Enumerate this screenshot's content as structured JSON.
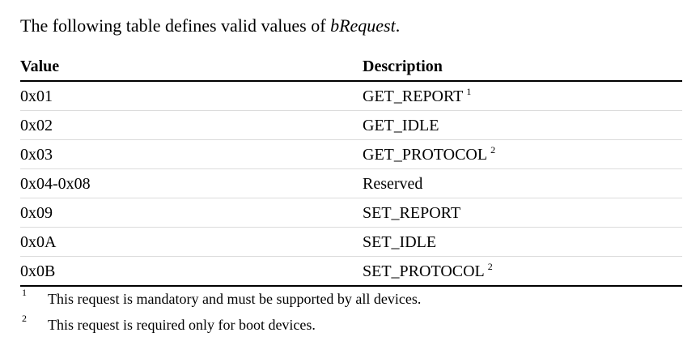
{
  "intro": {
    "text_before": "The following table defines valid values of ",
    "field_name": "bRequest",
    "text_after": "."
  },
  "table": {
    "headers": {
      "value": "Value",
      "description": "Description"
    },
    "rows": [
      {
        "value": "0x01",
        "description": "GET_REPORT",
        "footnote": "1"
      },
      {
        "value": "0x02",
        "description": "GET_IDLE",
        "footnote": ""
      },
      {
        "value": "0x03",
        "description": "GET_PROTOCOL",
        "footnote": "2"
      },
      {
        "value": "0x04-0x08",
        "description": "Reserved",
        "footnote": ""
      },
      {
        "value": "0x09",
        "description": "SET_REPORT",
        "footnote": ""
      },
      {
        "value": "0x0A",
        "description": "SET_IDLE",
        "footnote": ""
      },
      {
        "value": "0x0B",
        "description": "SET_PROTOCOL",
        "footnote": "2"
      }
    ]
  },
  "footnotes": [
    {
      "mark": "1",
      "text": "This request is mandatory and must be supported by all devices."
    },
    {
      "mark": "2",
      "text": "This request is required only for boot devices."
    }
  ]
}
